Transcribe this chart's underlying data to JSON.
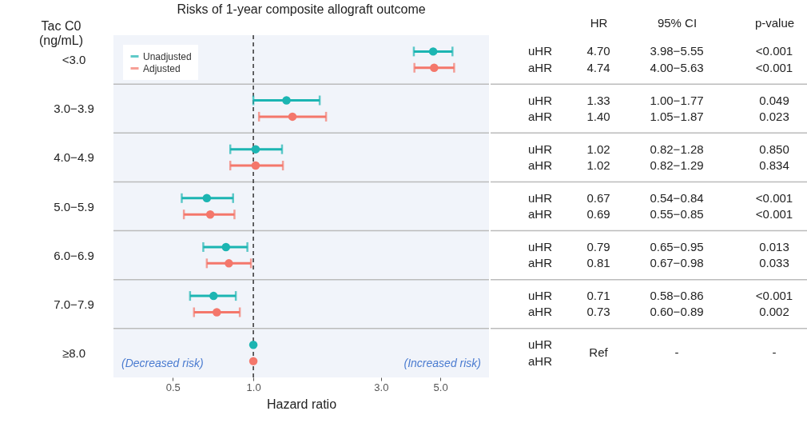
{
  "chart_data": {
    "type": "scatter",
    "orientation": "horizontal",
    "title": "Risks of 1-year composite allograft outcome",
    "xlabel": "Hazard ratio",
    "ylabel": "Tac C0 (ng/mL)",
    "categories": [
      "<3.0",
      "3.0−3.9",
      "4.0−4.9",
      "5.0−5.9",
      "6.0−6.9",
      "7.0−7.9",
      "≥8.0"
    ],
    "series": [
      {
        "name": "Unadjusted",
        "color": "#1cb5b2",
        "values": [
          4.7,
          1.33,
          1.02,
          0.67,
          0.79,
          0.71,
          1.0
        ],
        "errors": [
          [
            3.98,
            5.55
          ],
          [
            1.0,
            1.77
          ],
          [
            0.82,
            1.28
          ],
          [
            0.54,
            0.84
          ],
          [
            0.65,
            0.95
          ],
          [
            0.58,
            0.86
          ],
          null
        ]
      },
      {
        "name": "Adjusted",
        "color": "#f4776b",
        "values": [
          4.74,
          1.4,
          1.02,
          0.69,
          0.81,
          0.73,
          1.0
        ],
        "errors": [
          [
            4.0,
            5.63
          ],
          [
            1.05,
            1.87
          ],
          [
            0.82,
            1.29
          ],
          [
            0.55,
            0.85
          ],
          [
            0.67,
            0.98
          ],
          [
            0.6,
            0.89
          ],
          null
        ]
      }
    ],
    "log": "x",
    "xlim": [
      0.3,
      7.6
    ],
    "xticks": [
      {
        "value": 0.5,
        "label": "0.5"
      },
      {
        "value": 1,
        "label": "1.0"
      },
      {
        "value": 3,
        "label": "3.0"
      },
      {
        "value": 5,
        "label": "5.0"
      }
    ],
    "ref_lines": [
      {
        "axis": "x",
        "value": 1,
        "line_style": "dashed"
      }
    ],
    "marker": "circle",
    "grid": "y",
    "legend": "top left",
    "annotations": [
      "(Decreased risk)",
      "(Increased risk)",
      "HR",
      "95% CI",
      "p-value",
      "uHR",
      "4.70",
      "3.98−5.55",
      "<0.001",
      "aHR",
      "4.74",
      "4.00−5.63",
      "<0.001",
      "uHR",
      "1.33",
      "1.00−1.77",
      "0.049",
      "aHR",
      "1.40",
      "1.05−1.87",
      "0.023",
      "uHR",
      "1.02",
      "0.82−1.28",
      "0.850",
      "aHR",
      "1.02",
      "0.82−1.29",
      "0.834",
      "uHR",
      "0.67",
      "0.54−0.84",
      "<0.001",
      "aHR",
      "0.69",
      "0.55−0.85",
      "<0.001",
      "uHR",
      "0.79",
      "0.65−0.95",
      "0.013",
      "aHR",
      "0.81",
      "0.67−0.98",
      "0.033",
      "uHR",
      "0.71",
      "0.58−0.86",
      "<0.001",
      "aHR",
      "0.73",
      "0.60−0.89",
      "0.002",
      "uHR",
      "aHR",
      "Ref",
      "-",
      "-"
    ]
  }
}
